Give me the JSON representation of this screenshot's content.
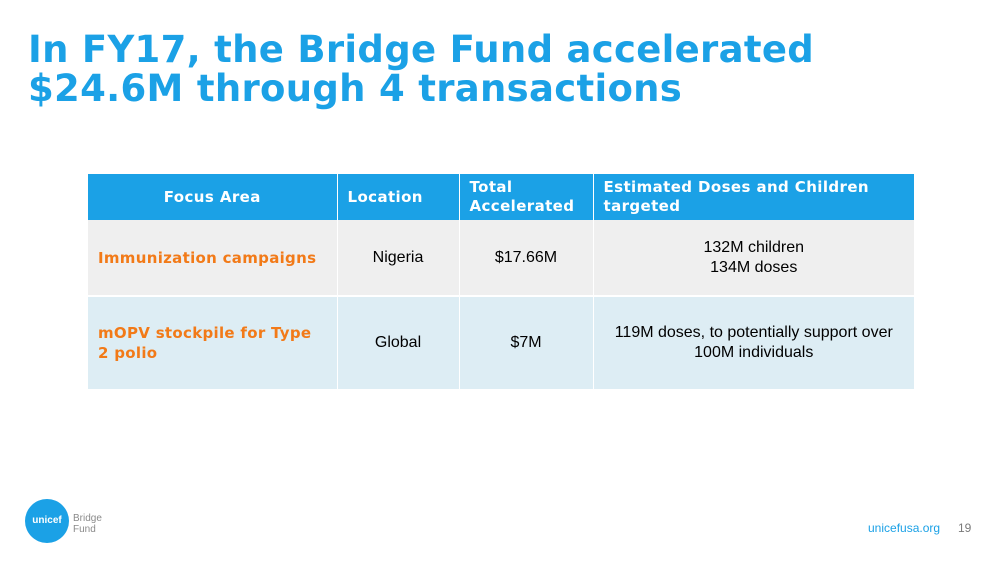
{
  "slide": {
    "title_line1": "In FY17, the Bridge Fund accelerated",
    "title_line2": "$24.6M through 4 transactions"
  },
  "table": {
    "headers": {
      "focus_area": "Focus Area",
      "location": "Location",
      "total_line1": "Total",
      "total_line2": "Accelerated",
      "estimated_line1": "Estimated  Doses and Children",
      "estimated_line2": "targeted"
    },
    "rows": [
      {
        "focus_area": "Immunization campaigns",
        "location": "Nigeria",
        "total": "$17.66M",
        "estimated_line1": "132M children",
        "estimated_line2": "134M doses"
      },
      {
        "focus_area_line1": "mOPV stockpile for Type",
        "focus_area_line2": "2 polio",
        "location": "Global",
        "total": "$7M",
        "estimated_line1": "119M doses, to potentially support over",
        "estimated_line2": "100M individuals"
      }
    ]
  },
  "footer": {
    "logo_word": "unicef",
    "logo_line1": "Bridge",
    "logo_line2": "Fund",
    "url": "unicefusa.org",
    "page_number": "19"
  },
  "colors": {
    "accent_blue": "#1ba1e6",
    "focus_orange": "#f27a18",
    "row1_bg": "#efefef",
    "row2_bg": "#ddedf4"
  }
}
